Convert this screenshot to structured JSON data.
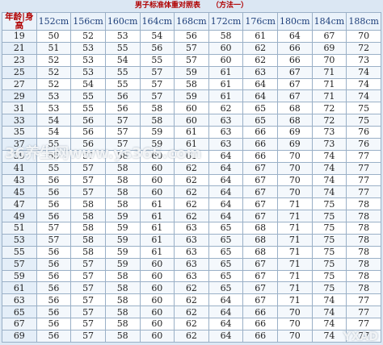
{
  "title": "男子标准体重对照表",
  "method": "（方法一）",
  "corner_label": "年龄|身高",
  "heights": [
    "152cm",
    "156cm",
    "160cm",
    "164cm",
    "168cm",
    "172cm",
    "176cm",
    "180cm",
    "184cm",
    "188cm"
  ],
  "rows": [
    {
      "age": "19",
      "values": [
        "50",
        "52",
        "53",
        "54",
        "56",
        "58",
        "61",
        "64",
        "67",
        "70"
      ]
    },
    {
      "age": "21",
      "values": [
        "51",
        "53",
        "55",
        "56",
        "57",
        "60",
        "62",
        "66",
        "69",
        "72"
      ]
    },
    {
      "age": "23",
      "values": [
        "52",
        "53",
        "54",
        "55",
        "57",
        "60",
        "62",
        "66",
        "70",
        "73"
      ]
    },
    {
      "age": "25",
      "values": [
        "52",
        "53",
        "55",
        "57",
        "59",
        "61",
        "63",
        "67",
        "71",
        "74"
      ]
    },
    {
      "age": "27",
      "values": [
        "52",
        "54",
        "55",
        "57",
        "58",
        "61",
        "64",
        "67",
        "71",
        "74"
      ]
    },
    {
      "age": "29",
      "values": [
        "53",
        "55",
        "56",
        "57",
        "59",
        "61",
        "64",
        "67",
        "71",
        "74"
      ]
    },
    {
      "age": "31",
      "values": [
        "53",
        "55",
        "56",
        "58",
        "60",
        "62",
        "65",
        "68",
        "72",
        "75"
      ]
    },
    {
      "age": "33",
      "values": [
        "54",
        "56",
        "57",
        "58",
        "60",
        "63",
        "65",
        "68",
        "72",
        "75"
      ]
    },
    {
      "age": "35",
      "values": [
        "54",
        "56",
        "57",
        "59",
        "61",
        "63",
        "66",
        "69",
        "73",
        "76"
      ]
    },
    {
      "age": "37",
      "values": [
        "55",
        "56",
        "57",
        "59",
        "61",
        "63",
        "66",
        "69",
        "73",
        "76"
      ]
    },
    {
      "age": "39",
      "values": [
        "55",
        "57",
        "58",
        "60",
        "61",
        "64",
        "66",
        "70",
        "74",
        "77"
      ]
    },
    {
      "age": "41",
      "values": [
        "55",
        "57",
        "58",
        "60",
        "62",
        "64",
        "67",
        "70",
        "74",
        "77"
      ]
    },
    {
      "age": "43",
      "values": [
        "56",
        "57",
        "58",
        "60",
        "62",
        "64",
        "67",
        "70",
        "74",
        "77"
      ]
    },
    {
      "age": "45",
      "values": [
        "56",
        "57",
        "58",
        "60",
        "62",
        "64",
        "67",
        "70",
        "74",
        "77"
      ]
    },
    {
      "age": "47",
      "values": [
        "56",
        "58",
        "58",
        "61",
        "62",
        "64",
        "67",
        "71",
        "75",
        "78"
      ]
    },
    {
      "age": "49",
      "values": [
        "56",
        "58",
        "59",
        "61",
        "62",
        "64",
        "67",
        "71",
        "75",
        "78"
      ]
    },
    {
      "age": "51",
      "values": [
        "57",
        "58",
        "59",
        "61",
        "63",
        "65",
        "68",
        "71",
        "75",
        "78"
      ]
    },
    {
      "age": "53",
      "values": [
        "57",
        "58",
        "59",
        "61",
        "63",
        "65",
        "68",
        "71",
        "75",
        "78"
      ]
    },
    {
      "age": "55",
      "values": [
        "56",
        "58",
        "59",
        "61",
        "63",
        "65",
        "68",
        "71",
        "75",
        "78"
      ]
    },
    {
      "age": "57",
      "values": [
        "56",
        "57",
        "59",
        "60",
        "63",
        "65",
        "67",
        "71",
        "75",
        "78"
      ]
    },
    {
      "age": "59",
      "values": [
        "56",
        "57",
        "58",
        "60",
        "63",
        "65",
        "67",
        "71",
        "75",
        "78"
      ]
    },
    {
      "age": "61",
      "values": [
        "56",
        "57",
        "58",
        "60",
        "62",
        "65",
        "67",
        "71",
        "75",
        "78"
      ]
    },
    {
      "age": "63",
      "values": [
        "56",
        "57",
        "58",
        "60",
        "62",
        "64",
        "67",
        "71",
        "74",
        "77"
      ]
    },
    {
      "age": "65",
      "values": [
        "56",
        "57",
        "58",
        "60",
        "62",
        "64",
        "66",
        "70",
        "74",
        "77"
      ]
    },
    {
      "age": "67",
      "values": [
        "56",
        "57",
        "58",
        "60",
        "62",
        "64",
        "66",
        "70",
        "74",
        "77"
      ]
    },
    {
      "age": "69",
      "values": [
        "56",
        "57",
        "58",
        "60",
        "62",
        "64",
        "66",
        "70",
        "74",
        "77"
      ]
    }
  ],
  "watermark_left": "36养生网www.ys365.com",
  "watermark_right": "YXAD"
}
